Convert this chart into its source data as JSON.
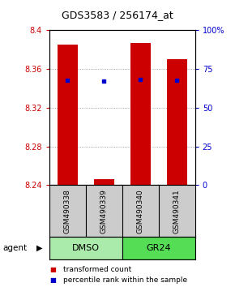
{
  "title": "GDS3583 / 256174_at",
  "samples": [
    "GSM490338",
    "GSM490339",
    "GSM490340",
    "GSM490341"
  ],
  "groups": [
    "DMSO",
    "DMSO",
    "GR24",
    "GR24"
  ],
  "group_labels": [
    "DMSO",
    "GR24"
  ],
  "bar_bottom": 8.24,
  "bar_tops": [
    8.385,
    8.246,
    8.387,
    8.37
  ],
  "percentile_values": [
    8.348,
    8.347,
    8.349,
    8.348
  ],
  "ylim_min": 8.24,
  "ylim_max": 8.4,
  "yticks": [
    8.24,
    8.28,
    8.32,
    8.36,
    8.4
  ],
  "ytick_labels_left": [
    "8.24",
    "8.28",
    "8.32",
    "8.36",
    "8.4"
  ],
  "ytick_labels_right": [
    "0",
    "25",
    "50",
    "75",
    "100%"
  ],
  "bar_color": "#cc0000",
  "percentile_color": "#0000cc",
  "bar_width": 0.55,
  "legend_items": [
    "transformed count",
    "percentile rank within the sample"
  ],
  "legend_colors": [
    "#cc0000",
    "#0000cc"
  ],
  "agent_label": "agent",
  "dmso_color": "#aaeaaa",
  "gr24_color": "#55dd55",
  "sample_bg_color": "#cccccc",
  "left_tick_color": "#cc0000",
  "right_tick_color": "#0000cc",
  "grid_color": "#888888",
  "title_fontsize": 9,
  "tick_fontsize": 7,
  "sample_fontsize": 6.5,
  "group_fontsize": 8,
  "legend_fontsize": 6.5
}
